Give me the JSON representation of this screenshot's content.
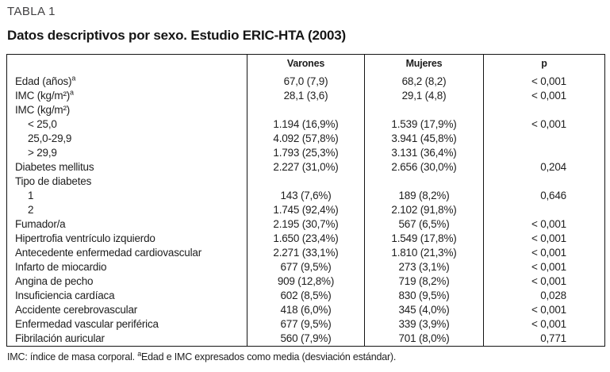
{
  "header": {
    "table_label": "TABLA 1",
    "title": "Datos descriptivos por sexo. Estudio ERIC-HTA (2003)"
  },
  "table": {
    "columns": {
      "label": "",
      "varones": "Varones",
      "mujeres": "Mujeres",
      "p": "p"
    },
    "rows": [
      {
        "label": "Edad (años)",
        "sup": "a",
        "indent": false,
        "varones": "67,0 (7,9)",
        "mujeres": "68,2 (8,2)",
        "p": "< 0,001"
      },
      {
        "label": "IMC (kg/m²)",
        "sup": "a",
        "indent": false,
        "varones": "28,1 (3,6)",
        "mujeres": "29,1 (4,8)",
        "p": "< 0,001"
      },
      {
        "label": "IMC (kg/m²)",
        "sup": "",
        "indent": false,
        "varones": "",
        "mujeres": "",
        "p": ""
      },
      {
        "label": "< 25,0",
        "sup": "",
        "indent": true,
        "varones": "1.194 (16,9%)",
        "mujeres": "1.539 (17,9%)",
        "p": "< 0,001"
      },
      {
        "label": "25,0-29,9",
        "sup": "",
        "indent": true,
        "varones": "4.092 (57,8%)",
        "mujeres": "3.941 (45,8%)",
        "p": ""
      },
      {
        "label": "> 29,9",
        "sup": "",
        "indent": true,
        "varones": "1.793 (25,3%)",
        "mujeres": "3.131 (36,4%)",
        "p": ""
      },
      {
        "label": "Diabetes mellitus",
        "sup": "",
        "indent": false,
        "varones": "2.227 (31,0%)",
        "mujeres": "2.656 (30,0%)",
        "p": "0,204"
      },
      {
        "label": "Tipo de diabetes",
        "sup": "",
        "indent": false,
        "varones": "",
        "mujeres": "",
        "p": ""
      },
      {
        "label": "1",
        "sup": "",
        "indent": true,
        "varones": "143 (7,6%)",
        "mujeres": "189 (8,2%)",
        "p": "0,646"
      },
      {
        "label": "2",
        "sup": "",
        "indent": true,
        "varones": "1.745 (92,4%)",
        "mujeres": "2.102 (91,8%)",
        "p": ""
      },
      {
        "label": "Fumador/a",
        "sup": "",
        "indent": false,
        "varones": "2.195 (30,7%)",
        "mujeres": "567 (6,5%)",
        "p": "< 0,001"
      },
      {
        "label": "Hipertrofia ventrículo izquierdo",
        "sup": "",
        "indent": false,
        "varones": "1.650 (23,4%)",
        "mujeres": "1.549 (17,8%)",
        "p": "< 0,001"
      },
      {
        "label": "Antecedente enfermedad cardiovascular",
        "sup": "",
        "indent": false,
        "varones": "2.271 (33,1%)",
        "mujeres": "1.810 (21,3%)",
        "p": "< 0,001"
      },
      {
        "label": "Infarto de miocardio",
        "sup": "",
        "indent": false,
        "varones": "677 (9,5%)",
        "mujeres": "273 (3,1%)",
        "p": "< 0,001"
      },
      {
        "label": "Angina de pecho",
        "sup": "",
        "indent": false,
        "varones": "909 (12,8%)",
        "mujeres": "719 (8,2%)",
        "p": "< 0,001"
      },
      {
        "label": "Insuficiencia cardíaca",
        "sup": "",
        "indent": false,
        "varones": "602 (8,5%)",
        "mujeres": "830 (9,5%)",
        "p": "0,028"
      },
      {
        "label": "Accidente cerebrovascular",
        "sup": "",
        "indent": false,
        "varones": "418 (6,0%)",
        "mujeres": "345 (4,0%)",
        "p": "< 0,001"
      },
      {
        "label": "Enfermedad vascular periférica",
        "sup": "",
        "indent": false,
        "varones": "677 (9,5%)",
        "mujeres": "339 (3,9%)",
        "p": "< 0,001"
      },
      {
        "label": "Fibrilación auricular",
        "sup": "",
        "indent": false,
        "varones": "560 (7,9%)",
        "mujeres": "701 (8,0%)",
        "p": "0,771"
      }
    ]
  },
  "footnote": {
    "part1": "IMC: índice de masa corporal. ",
    "sup": "a",
    "part2": "Edad e IMC expresados como media (desviación estándar)."
  },
  "colors": {
    "background": "#ffffff",
    "text": "#1e1e1e",
    "muted_label": "#414042",
    "border": "#141414"
  }
}
